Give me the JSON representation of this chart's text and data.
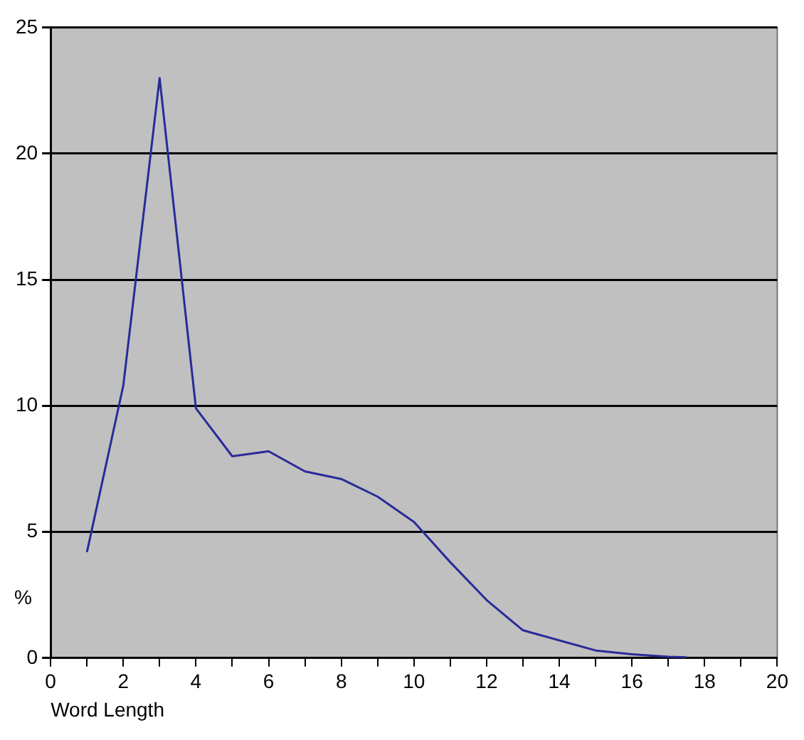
{
  "chart_data": {
    "type": "line",
    "xlabel": "Word Length",
    "ylabel": "%",
    "series": [
      {
        "color": "#2a2a9a",
        "x": [
          1,
          2,
          3,
          4,
          5,
          6,
          7,
          8,
          9,
          10,
          11,
          12,
          13,
          14,
          15,
          16,
          17,
          17.5
        ],
        "values": [
          4.2,
          10.8,
          23,
          9.9,
          8.0,
          8.2,
          7.4,
          7.1,
          6.4,
          5.4,
          3.8,
          2.3,
          1.1,
          0.7,
          0.3,
          0.15,
          0.05,
          0.03
        ]
      }
    ],
    "xlim": [
      0,
      20
    ],
    "xticks": [
      0,
      {
        "value": 1,
        "label": null
      },
      2,
      {
        "value": 3,
        "label": null
      },
      4,
      {
        "value": 5,
        "label": null
      },
      6,
      {
        "value": 7,
        "label": null
      },
      8,
      {
        "value": 9,
        "label": null
      },
      10,
      {
        "value": 11,
        "label": null
      },
      12,
      {
        "value": 13,
        "label": null
      },
      14,
      {
        "value": 15,
        "label": null
      },
      16,
      {
        "value": 17,
        "label": null
      },
      18,
      {
        "value": 19,
        "label": null
      },
      20
    ],
    "ylim": [
      0,
      25
    ],
    "yticks": [
      0,
      5,
      10,
      15,
      20,
      25
    ],
    "grid": "y",
    "legend": false,
    "marker": "none",
    "line_style": "solid"
  }
}
